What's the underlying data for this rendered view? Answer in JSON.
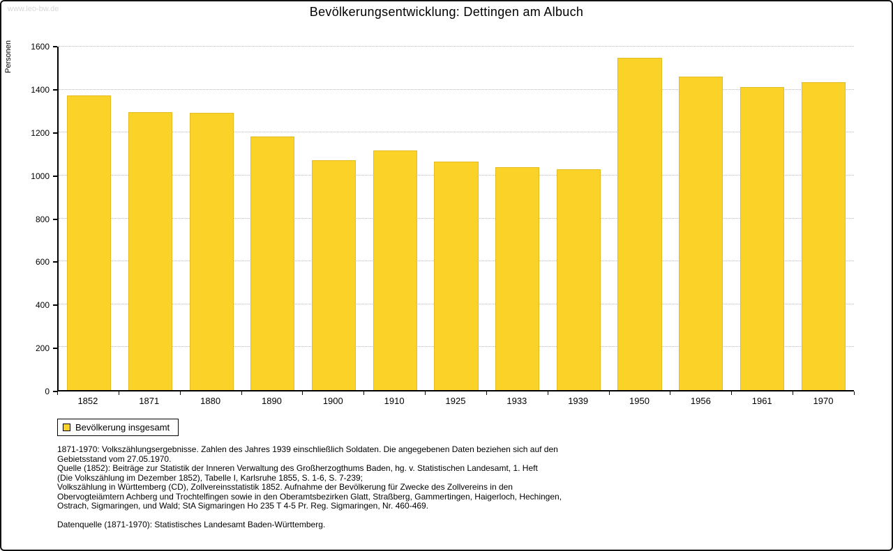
{
  "header": {
    "watermark": "www.leo-bw.de"
  },
  "chart_data": {
    "type": "bar",
    "title": "Bevölkerungsentwicklung: Dettingen am Albuch",
    "xlabel": "",
    "ylabel": "Personen",
    "ylim": [
      0,
      1600
    ],
    "ytick_step": 200,
    "grid": "horizontal-dotted",
    "legend_position": "bottom-left",
    "categories": [
      "1852",
      "1871",
      "1880",
      "1890",
      "1900",
      "1910",
      "1925",
      "1933",
      "1939",
      "1950",
      "1956",
      "1961",
      "1970"
    ],
    "series": [
      {
        "name": "Bevölkerung insgesamt",
        "values": [
          1372,
          1295,
          1292,
          1180,
          1072,
          1118,
          1065,
          1040,
          1028,
          1548,
          1460,
          1412,
          1436
        ]
      }
    ],
    "bar_color": "#fbd228",
    "bar_border_color": "#e4bb20",
    "gridline_color": "#b9b9b9",
    "axis_color": "#000000"
  },
  "legend": {
    "label": "Bevölkerung insgesamt"
  },
  "footnotes": {
    "lines": [
      "1871-1970: Volkszählungsergebnisse. Zahlen des Jahres 1939 einschließlich Soldaten. Die angegebenen Daten beziehen sich auf den",
      "Gebietsstand vom 27.05.1970.",
      "Quelle (1852): Beiträge zur Statistik der Inneren Verwaltung des Großherzogthums Baden, hg. v. Statistischen Landesamt, 1. Heft",
      "(Die Volkszählung im Dezember 1852), Tabelle I, Karlsruhe 1855, S. 1-6, S. 7-239;",
      "Volkszählung in Württemberg (CD), Zollvereinsstatistik 1852. Aufnahme der Bevölkerung für Zwecke des Zollvereins in den",
      "Obervogteiämtern Achberg und Trochtelfingen sowie in den Oberamtsbezirken Glatt, Straßberg, Gammertingen, Haigerloch, Hechingen,",
      "Ostrach, Sigmaringen, und Wald; StA Sigmaringen Ho 235 T 4-5 Pr. Reg. Sigmaringen, Nr. 460-469."
    ],
    "source": "Datenquelle (1871-1970): Statistisches Landesamt Baden-Württemberg."
  }
}
